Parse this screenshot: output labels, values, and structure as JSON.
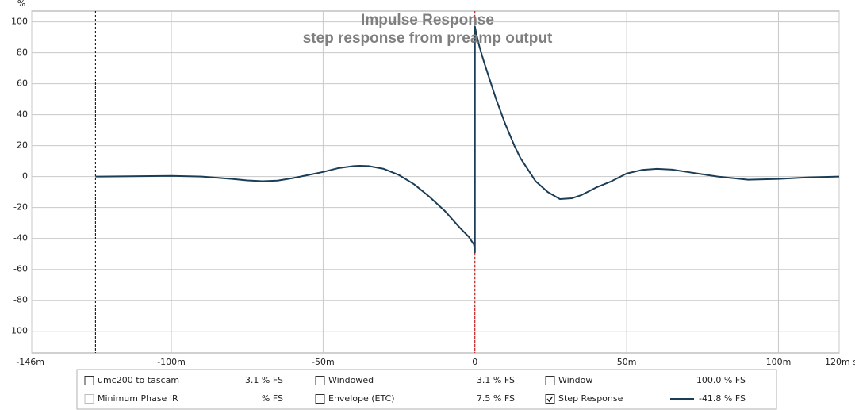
{
  "chart_data": {
    "type": "line",
    "title": "Impulse Response",
    "subtitle": "step response from preamp output",
    "y_label": "%",
    "xlim": [
      -146,
      120
    ],
    "ylim": [
      -114,
      107
    ],
    "xticks": [
      {
        "value": -146,
        "label": "-146m"
      },
      {
        "value": -100,
        "label": "-100m"
      },
      {
        "value": -50,
        "label": "-50m"
      },
      0,
      {
        "value": 50,
        "label": "50m"
      },
      {
        "value": 100,
        "label": "100m"
      },
      {
        "value": 120,
        "label": "120m s"
      }
    ],
    "yticks": [
      -100,
      -80,
      -60,
      -40,
      -20,
      0,
      20,
      40,
      60,
      80,
      100
    ],
    "grid": true,
    "markers": [
      {
        "value": -125,
        "color": "#000000"
      },
      {
        "value": 0,
        "color": "#c00000"
      }
    ],
    "series": [
      {
        "color": "#1b3d56",
        "x": [
          -125,
          -110,
          -100,
          -90,
          -80,
          -75,
          -70,
          -65,
          -60,
          -55,
          -50,
          -45,
          -40,
          -38,
          -35,
          -30,
          -25,
          -20,
          -15,
          -10,
          -5,
          -2,
          -1,
          -0.3,
          0,
          0,
          0.5,
          1.5,
          3,
          5,
          7,
          10,
          13,
          15,
          18,
          20,
          24,
          28,
          32,
          35,
          40,
          45,
          50,
          55,
          60,
          65,
          70,
          75,
          80,
          90,
          100,
          110,
          120
        ],
        "values": [
          0,
          0.3,
          0.5,
          0,
          -1.5,
          -2.5,
          -3,
          -2.6,
          -1,
          1,
          3,
          5.5,
          6.8,
          7,
          6.8,
          5,
          1,
          -5,
          -13,
          -22,
          -33,
          -39,
          -42,
          -44,
          -49,
          97,
          92,
          84,
          74,
          62,
          50,
          34,
          20,
          12,
          3,
          -3,
          -10,
          -14.5,
          -14,
          -12,
          -7,
          -3,
          2,
          4.3,
          5,
          4.5,
          3,
          1.5,
          0,
          -2,
          -1.5,
          -0.5,
          0
        ]
      }
    ]
  },
  "panel": {
    "items": [
      {
        "label": "umc200 to tascam",
        "value": "3.1 % FS",
        "checked": false,
        "enabled": true,
        "color": "#2a7ab8"
      },
      {
        "label": "Windowed",
        "value": "3.1 % FS",
        "checked": false,
        "enabled": true,
        "color": "#4fb8e3"
      },
      {
        "label": "Window",
        "value": "100.0 % FS",
        "checked": false,
        "enabled": true,
        "color": "#1a1aa8"
      },
      {
        "label": "Minimum Phase IR",
        "value": "% FS",
        "checked": false,
        "enabled": false,
        "color": "#a8a8a8"
      },
      {
        "label": "Envelope (ETC)",
        "value": "7.5 % FS",
        "checked": false,
        "enabled": true,
        "color": "#404040"
      },
      {
        "label": "Step Response",
        "value": "-41.8 % FS",
        "checked": true,
        "enabled": true,
        "color": "#1b3d56",
        "series": 0
      }
    ]
  }
}
